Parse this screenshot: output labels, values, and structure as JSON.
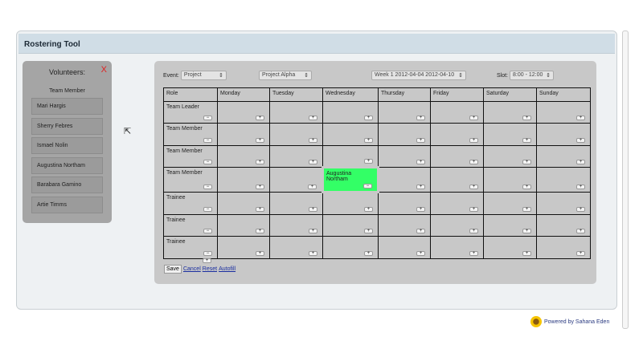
{
  "header": {
    "title": "Rostering Tool"
  },
  "volunteers": {
    "title": "Volunteers:",
    "close": "X",
    "role": "Team Member",
    "items": [
      "Mari Hargis",
      "Sherry Febres",
      "Ismael Nolin",
      "Augustina Northam",
      "Barabara Gamino",
      "Artie Timms"
    ]
  },
  "controls": {
    "event_label": "Event:",
    "event_value": "Project",
    "project_value": "Project Alpha",
    "week_value": "Week 1 2012-04-04 2012-04-10",
    "slot_label": "Slot:",
    "slot_value": "8:00 - 12:00"
  },
  "table": {
    "headers": [
      "Role",
      "Monday",
      "Tuesday",
      "Wednesday",
      "Thursday",
      "Friday",
      "Saturday",
      "Sunday"
    ],
    "rows": [
      {
        "role": "Team Leader",
        "cells": [
          "",
          "",
          "",
          "",
          "",
          "",
          ""
        ]
      },
      {
        "role": "Team Member",
        "cells": [
          "",
          "",
          "",
          "",
          "",
          "",
          ""
        ]
      },
      {
        "role": "Team Member",
        "cells": [
          "",
          "",
          "",
          "",
          "",
          "",
          ""
        ]
      },
      {
        "role": "Team Member",
        "cells": [
          "",
          "",
          "Augustina Northam",
          "",
          "",
          "",
          ""
        ]
      },
      {
        "role": "Trainee",
        "cells": [
          "",
          "",
          "",
          "",
          "",
          "",
          ""
        ]
      },
      {
        "role": "Trainee",
        "cells": [
          "",
          "",
          "",
          "",
          "",
          "",
          ""
        ]
      },
      {
        "role": "Trainee",
        "cells": [
          "",
          "",
          "",
          "",
          "",
          "",
          ""
        ]
      }
    ],
    "add_symbol": "+",
    "remove_symbol": "−"
  },
  "actions": {
    "save": "Save",
    "cancel": "Cancel",
    "reset": "Reset",
    "autofill": "Autofill"
  },
  "footer": {
    "powered": "Powered by Sahana Eden"
  },
  "colors": {
    "assigned": "#33ff66",
    "header_bar": "#d0dde6",
    "close": "#e02020"
  }
}
